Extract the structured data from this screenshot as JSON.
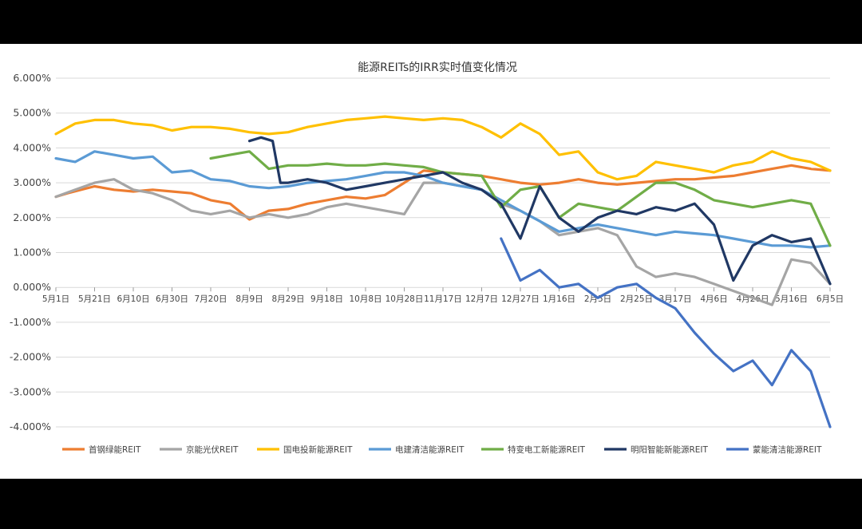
{
  "chart_data": {
    "type": "line",
    "title": "能源REITs的IRR实时值变化情况",
    "yticks": [
      "6.000%",
      "5.000%",
      "4.000%",
      "3.000%",
      "2.000%",
      "1.000%",
      "0.000%",
      "-1.000%",
      "-2.000%",
      "-3.000%",
      "-4.000%"
    ],
    "ylim": [
      -4,
      6
    ],
    "xticks": [
      "5月1日",
      "5月21日",
      "6月10日",
      "6月30日",
      "7月20日",
      "8月9日",
      "8月29日",
      "9月18日",
      "10月8日",
      "10月28日",
      "11月17日",
      "12月7日",
      "12月27日",
      "1月16日",
      "2月5日",
      "2月25日",
      "3月17日",
      "4月6日",
      "4月26日",
      "5月16日",
      "6月5日"
    ],
    "grid": true,
    "legend_position": "bottom",
    "series": [
      {
        "name": "首钢绿能REIT",
        "color": "#ED7D31",
        "x": [
          0,
          0.3,
          1,
          1.5,
          2,
          2.5,
          3,
          3.5,
          4,
          4.5,
          5,
          5.5,
          6,
          6.5,
          7,
          7.5,
          8,
          8.5,
          9,
          9.5,
          10,
          10.5,
          11,
          11.5,
          12,
          12.5,
          13,
          13.5,
          14,
          14.5,
          15,
          15.5,
          16,
          16.5,
          17,
          17.5,
          18,
          18.5,
          19,
          19.5,
          20
        ],
        "values": [
          2.6,
          2.7,
          2.9,
          2.8,
          2.75,
          2.8,
          2.75,
          2.7,
          2.5,
          2.4,
          1.95,
          2.2,
          2.25,
          2.4,
          2.5,
          2.6,
          2.55,
          2.65,
          3.0,
          3.35,
          3.3,
          3.25,
          3.2,
          3.1,
          3.0,
          2.95,
          3.0,
          3.1,
          3.0,
          2.95,
          3.0,
          3.05,
          3.1,
          3.1,
          3.15,
          3.2,
          3.3,
          3.4,
          3.5,
          3.4,
          3.35
        ]
      },
      {
        "name": "京能光伏REIT",
        "color": "#A5A5A5",
        "x": [
          0,
          0.5,
          1,
          1.5,
          2,
          2.5,
          3,
          3.5,
          4,
          4.5,
          5,
          5.5,
          6,
          6.5,
          7,
          7.5,
          8,
          8.5,
          9,
          9.5,
          10,
          10.5,
          11,
          11.5,
          12,
          12.5,
          13,
          13.5,
          14,
          14.5,
          15,
          15.5,
          16,
          16.5,
          17,
          17.5,
          18,
          18.5,
          19,
          19.5,
          20
        ],
        "values": [
          2.6,
          2.8,
          3.0,
          3.1,
          2.8,
          2.7,
          2.5,
          2.2,
          2.1,
          2.2,
          2.0,
          2.1,
          2.0,
          2.1,
          2.3,
          2.4,
          2.3,
          2.2,
          2.1,
          3.0,
          3.0,
          2.9,
          2.8,
          2.4,
          2.2,
          1.9,
          1.5,
          1.6,
          1.7,
          1.5,
          0.6,
          0.3,
          0.4,
          0.3,
          0.1,
          -0.1,
          -0.3,
          -0.5,
          0.8,
          0.7,
          0.1
        ]
      },
      {
        "name": "国电投新能源REIT",
        "color": "#FFC000",
        "x": [
          0,
          0.5,
          1,
          1.5,
          2,
          2.5,
          3,
          3.5,
          4,
          4.5,
          5,
          5.5,
          6,
          6.5,
          7,
          7.5,
          8,
          8.5,
          9,
          9.5,
          10,
          10.5,
          11,
          11.5,
          12,
          12.5,
          13,
          13.5,
          14,
          14.5,
          15,
          15.5,
          16,
          16.5,
          17,
          17.5,
          18,
          18.5,
          19,
          19.5,
          20
        ],
        "values": [
          4.4,
          4.7,
          4.8,
          4.8,
          4.7,
          4.65,
          4.5,
          4.6,
          4.6,
          4.55,
          4.45,
          4.4,
          4.45,
          4.6,
          4.7,
          4.8,
          4.85,
          4.9,
          4.85,
          4.8,
          4.85,
          4.8,
          4.6,
          4.3,
          4.7,
          4.4,
          3.8,
          3.9,
          3.3,
          3.1,
          3.2,
          3.6,
          3.5,
          3.4,
          3.3,
          3.5,
          3.6,
          3.9,
          3.7,
          3.6,
          3.35
        ]
      },
      {
        "name": "电建清洁能源REIT",
        "color": "#5B9BD5",
        "x": [
          0,
          0.5,
          1,
          1.5,
          2,
          2.5,
          3,
          3.5,
          4,
          4.5,
          5,
          5.5,
          6,
          6.5,
          7,
          7.5,
          8,
          8.5,
          9,
          9.5,
          10,
          10.5,
          11,
          11.5,
          12,
          12.5,
          13,
          13.5,
          14,
          14.5,
          15,
          15.5,
          16,
          16.5,
          17,
          17.5,
          18,
          18.5,
          19,
          19.5,
          20
        ],
        "values": [
          3.7,
          3.6,
          3.9,
          3.8,
          3.7,
          3.75,
          3.3,
          3.35,
          3.1,
          3.05,
          2.9,
          2.85,
          2.9,
          3.0,
          3.05,
          3.1,
          3.2,
          3.3,
          3.3,
          3.2,
          3.0,
          2.9,
          2.8,
          2.5,
          2.2,
          1.9,
          1.6,
          1.7,
          1.8,
          1.7,
          1.6,
          1.5,
          1.6,
          1.55,
          1.5,
          1.4,
          1.3,
          1.2,
          1.2,
          1.15,
          1.2
        ]
      },
      {
        "name": "特变电工新能源REIT",
        "color": "#70AD47",
        "x": [
          4,
          4.5,
          5,
          5.5,
          6,
          6.5,
          7,
          7.5,
          8,
          8.5,
          9,
          9.5,
          10,
          10.5,
          11,
          11.5,
          12,
          12.5,
          13,
          13.5,
          14,
          14.5,
          15,
          15.5,
          16,
          16.5,
          17,
          17.5,
          18,
          18.5,
          19,
          19.5,
          20
        ],
        "values": [
          3.7,
          3.8,
          3.9,
          3.4,
          3.5,
          3.5,
          3.55,
          3.5,
          3.5,
          3.55,
          3.5,
          3.45,
          3.3,
          3.25,
          3.2,
          2.3,
          2.8,
          2.9,
          2.0,
          2.4,
          2.3,
          2.2,
          2.6,
          3.0,
          3.0,
          2.8,
          2.5,
          2.4,
          2.3,
          2.4,
          2.5,
          2.4,
          1.2
        ]
      },
      {
        "name": "明阳智能新能源REIT",
        "color": "#203864",
        "x": [
          5,
          5.3,
          5.6,
          5.8,
          6,
          6.5,
          7,
          7.5,
          8,
          8.5,
          9,
          9.5,
          10,
          10.5,
          11,
          11.5,
          12,
          12.5,
          13,
          13.5,
          14,
          14.5,
          15,
          15.5,
          16,
          16.5,
          17,
          17.5,
          18,
          18.5,
          19,
          19.5,
          20
        ],
        "values": [
          4.2,
          4.3,
          4.2,
          3.0,
          3.0,
          3.1,
          3.0,
          2.8,
          2.9,
          3.0,
          3.1,
          3.2,
          3.3,
          3.0,
          2.8,
          2.4,
          1.4,
          2.9,
          2.0,
          1.6,
          2.0,
          2.2,
          2.1,
          2.3,
          2.2,
          2.4,
          1.8,
          0.2,
          1.2,
          1.5,
          1.3,
          1.4,
          0.1
        ]
      },
      {
        "name": "蒙能清洁能源REIT",
        "color": "#4472C4",
        "x": [
          11.5,
          12,
          12.5,
          13,
          13.5,
          14,
          14.5,
          15,
          15.5,
          16,
          16.5,
          17,
          17.5,
          18,
          18.5,
          19,
          19.5,
          20
        ],
        "values": [
          1.4,
          0.2,
          0.5,
          0.0,
          0.1,
          -0.3,
          0.0,
          0.1,
          -0.3,
          -0.6,
          -1.3,
          -1.9,
          -2.4,
          -2.1,
          -2.8,
          -1.8,
          -2.4,
          -4.0
        ]
      }
    ]
  }
}
